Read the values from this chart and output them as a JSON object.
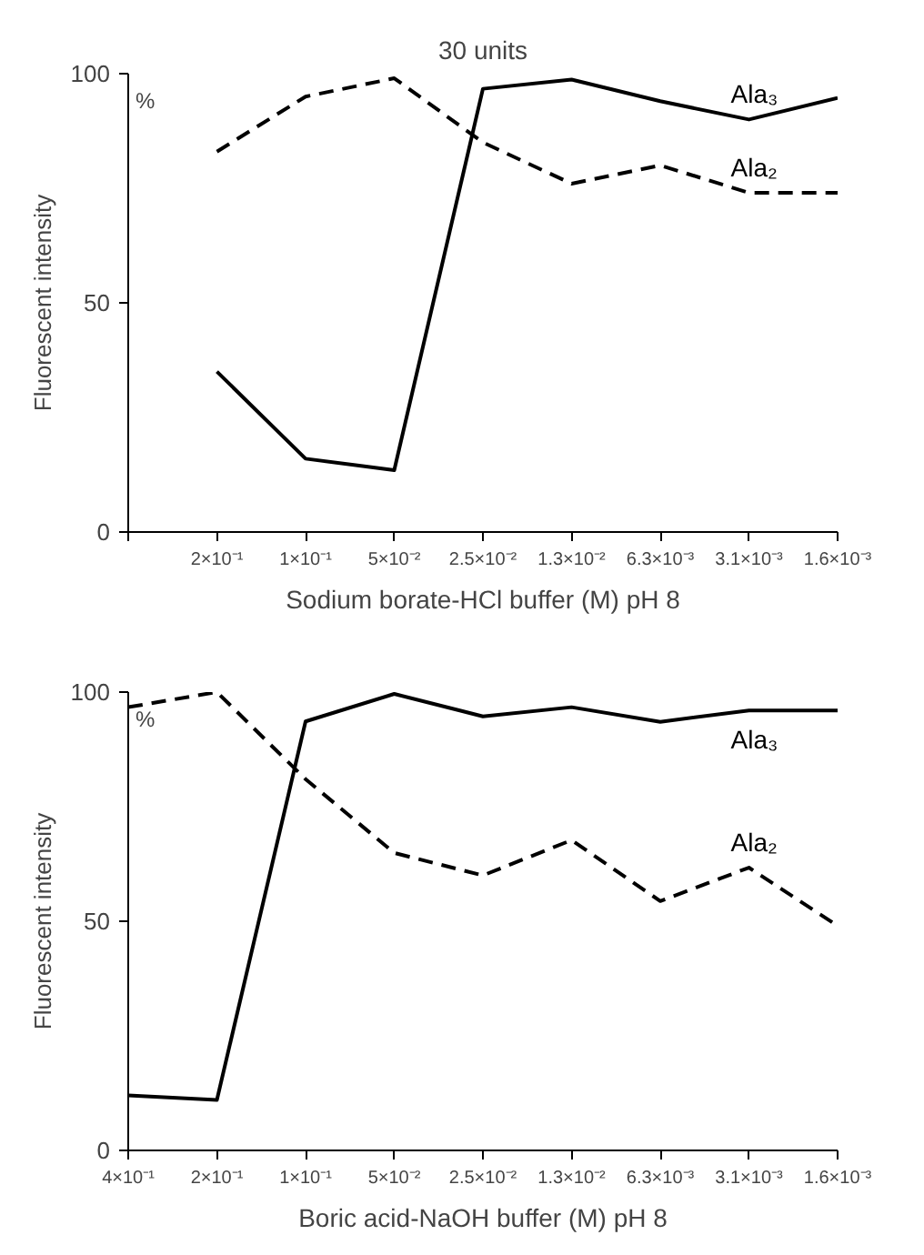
{
  "chart_data": [
    {
      "type": "line",
      "xlabel": "Sodium borate-HCl buffer (M) pH 8",
      "ylabel": "Fluorescent intensity",
      "annotations": [
        "30 units",
        "%"
      ],
      "categories": [
        null,
        "2×10⁻¹",
        "1×10⁻¹",
        "5×10⁻²",
        "2.5×10⁻²",
        "1.3×10⁻²",
        "6.3×10⁻³",
        "3.1×10⁻³",
        "1.6×10⁻³"
      ],
      "ylim": [
        0,
        100
      ],
      "yticks": [
        0,
        50,
        100
      ],
      "grid": false,
      "legend": false,
      "marker": "none",
      "series": [
        {
          "name": "Ala₃",
          "color": "#000000",
          "line_style": "solid",
          "values": [
            null,
            35,
            16,
            13.5,
            96.7,
            98.7,
            94,
            90,
            94.7
          ]
        },
        {
          "name": "Ala₂",
          "color": "#000000",
          "line_style": "dashed",
          "values": [
            null,
            83,
            95,
            99,
            85,
            76,
            80,
            74,
            74
          ]
        }
      ]
    },
    {
      "type": "line",
      "xlabel": "Boric acid-NaOH buffer (M) pH 8",
      "ylabel": "Fluorescent intensity",
      "annotations": [
        "%"
      ],
      "categories": [
        "4×10⁻¹",
        "2×10⁻¹",
        "1×10⁻¹",
        "5×10⁻²",
        "2.5×10⁻²",
        "1.3×10⁻²",
        "6.3×10⁻³",
        "3.1×10⁻³",
        "1.6×10⁻³"
      ],
      "ylim": [
        0,
        100
      ],
      "yticks": [
        0,
        50,
        100
      ],
      "grid": false,
      "legend": false,
      "marker": "none",
      "series": [
        {
          "name": "Ala₃",
          "color": "#000000",
          "line_style": "solid",
          "values": [
            12,
            11,
            93.6,
            99.6,
            94.7,
            96.7,
            93.5,
            96,
            96
          ]
        },
        {
          "name": "Ala₂",
          "color": "#000000",
          "line_style": "dashed",
          "values": [
            96.7,
            100,
            81,
            64.9,
            60,
            67.7,
            54.4,
            61.7,
            49
          ]
        }
      ]
    }
  ]
}
